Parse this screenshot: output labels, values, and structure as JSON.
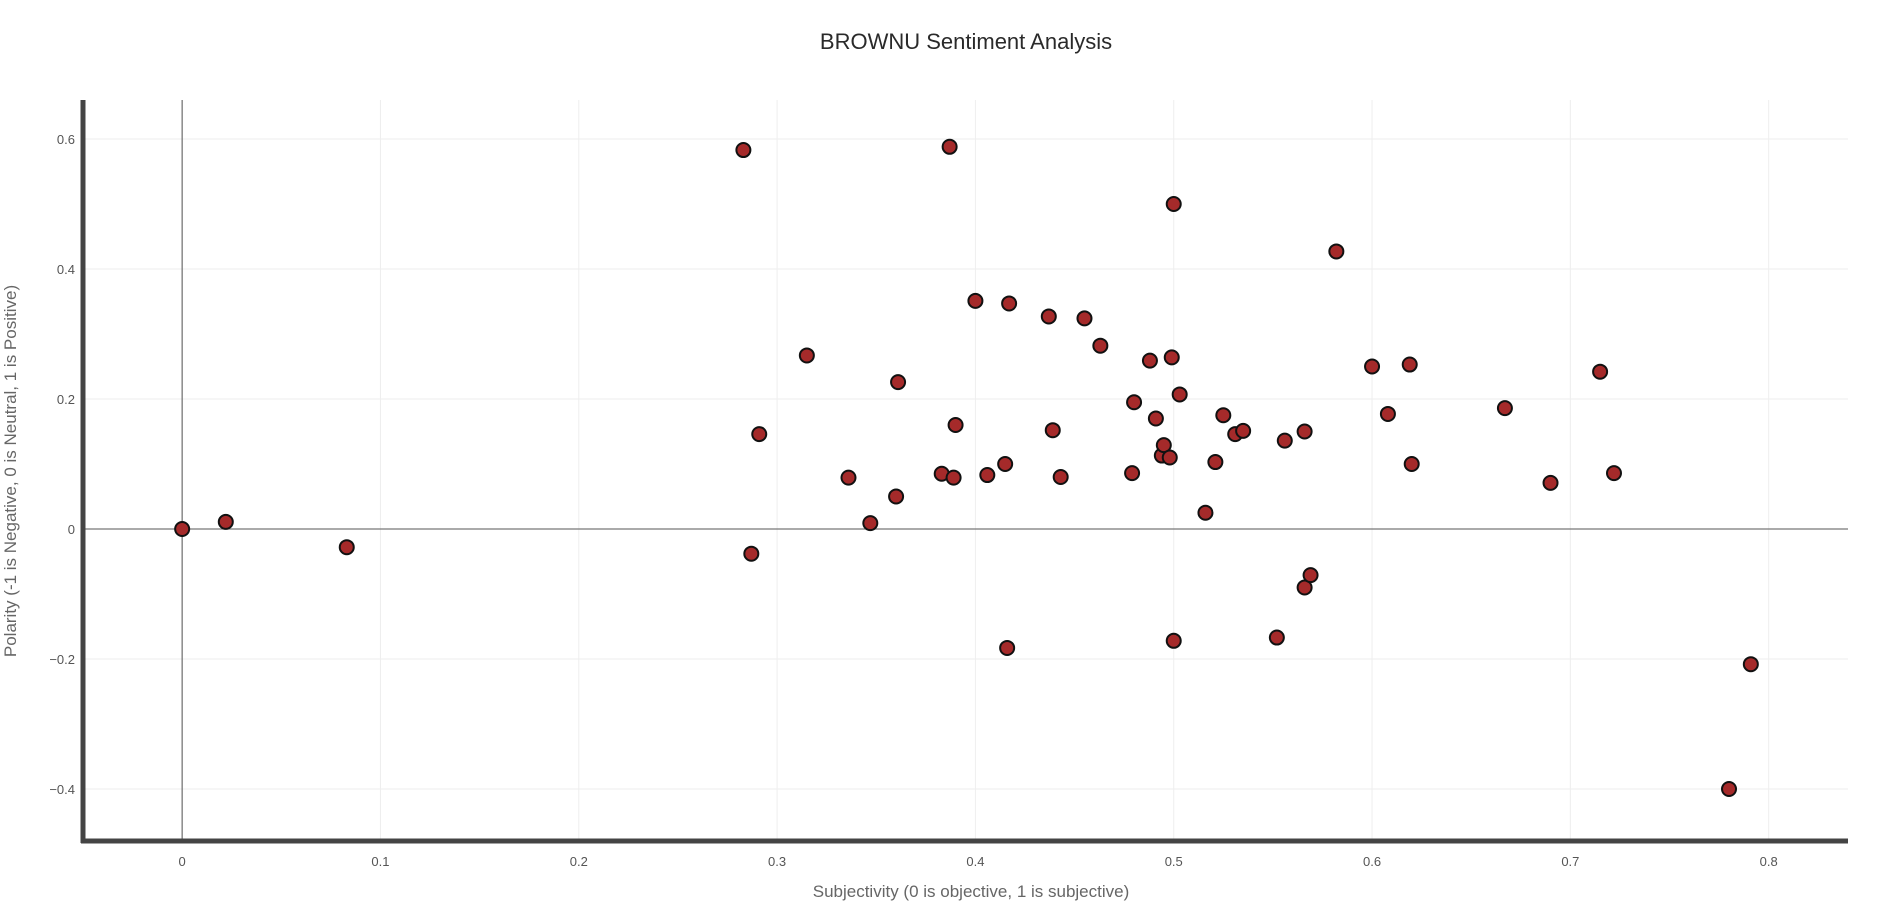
{
  "chart_data": {
    "type": "scatter",
    "title": "BROWNU Sentiment Analysis",
    "xlabel": "Subjectivity (0 is objective, 1 is subjective)",
    "ylabel": "Polarity (-1 is Negative, 0 is Neutral, 1 is Positive)",
    "xlim": [
      -0.05,
      0.84
    ],
    "ylim": [
      -0.48,
      0.66
    ],
    "x_ticks": [
      0,
      0.1,
      0.2,
      0.3,
      0.4,
      0.5,
      0.6,
      0.7,
      0.8
    ],
    "x_tick_labels": [
      "0",
      "0.1",
      "0.2",
      "0.3",
      "0.4",
      "0.5",
      "0.6",
      "0.7",
      "0.8"
    ],
    "y_ticks": [
      -0.4,
      -0.2,
      0,
      0.2,
      0.4,
      0.6
    ],
    "y_tick_labels": [
      "−0.4",
      "−0.2",
      "0",
      "0.2",
      "0.4",
      "0.6"
    ],
    "grid": true,
    "marker_color": "#a52a2a",
    "marker_edge_color": "#111111",
    "points": [
      {
        "x": 0.0,
        "y": 0.0
      },
      {
        "x": 0.022,
        "y": 0.011
      },
      {
        "x": 0.083,
        "y": -0.028
      },
      {
        "x": 0.283,
        "y": 0.583
      },
      {
        "x": 0.287,
        "y": -0.038
      },
      {
        "x": 0.291,
        "y": 0.146
      },
      {
        "x": 0.315,
        "y": 0.267
      },
      {
        "x": 0.336,
        "y": 0.079
      },
      {
        "x": 0.347,
        "y": 0.009
      },
      {
        "x": 0.36,
        "y": 0.05
      },
      {
        "x": 0.361,
        "y": 0.226
      },
      {
        "x": 0.383,
        "y": 0.085
      },
      {
        "x": 0.387,
        "y": 0.588
      },
      {
        "x": 0.389,
        "y": 0.079
      },
      {
        "x": 0.39,
        "y": 0.16
      },
      {
        "x": 0.4,
        "y": 0.351
      },
      {
        "x": 0.406,
        "y": 0.083
      },
      {
        "x": 0.415,
        "y": 0.1
      },
      {
        "x": 0.416,
        "y": -0.183
      },
      {
        "x": 0.417,
        "y": 0.347
      },
      {
        "x": 0.437,
        "y": 0.327
      },
      {
        "x": 0.439,
        "y": 0.152
      },
      {
        "x": 0.443,
        "y": 0.08
      },
      {
        "x": 0.455,
        "y": 0.324
      },
      {
        "x": 0.463,
        "y": 0.282
      },
      {
        "x": 0.479,
        "y": 0.086
      },
      {
        "x": 0.48,
        "y": 0.195
      },
      {
        "x": 0.488,
        "y": 0.259
      },
      {
        "x": 0.491,
        "y": 0.17
      },
      {
        "x": 0.494,
        "y": 0.113
      },
      {
        "x": 0.495,
        "y": 0.129
      },
      {
        "x": 0.498,
        "y": 0.11
      },
      {
        "x": 0.499,
        "y": 0.264
      },
      {
        "x": 0.5,
        "y": 0.5
      },
      {
        "x": 0.5,
        "y": -0.172
      },
      {
        "x": 0.503,
        "y": 0.207
      },
      {
        "x": 0.516,
        "y": 0.025
      },
      {
        "x": 0.521,
        "y": 0.103
      },
      {
        "x": 0.525,
        "y": 0.175
      },
      {
        "x": 0.531,
        "y": 0.146
      },
      {
        "x": 0.535,
        "y": 0.151
      },
      {
        "x": 0.552,
        "y": -0.167
      },
      {
        "x": 0.556,
        "y": 0.136
      },
      {
        "x": 0.566,
        "y": 0.15
      },
      {
        "x": 0.566,
        "y": -0.09
      },
      {
        "x": 0.569,
        "y": -0.071
      },
      {
        "x": 0.582,
        "y": 0.427
      },
      {
        "x": 0.6,
        "y": 0.25
      },
      {
        "x": 0.608,
        "y": 0.177
      },
      {
        "x": 0.619,
        "y": 0.253
      },
      {
        "x": 0.62,
        "y": 0.1
      },
      {
        "x": 0.667,
        "y": 0.186
      },
      {
        "x": 0.69,
        "y": 0.071
      },
      {
        "x": 0.715,
        "y": 0.242
      },
      {
        "x": 0.722,
        "y": 0.086
      },
      {
        "x": 0.78,
        "y": -0.4
      },
      {
        "x": 0.791,
        "y": -0.208
      }
    ]
  }
}
